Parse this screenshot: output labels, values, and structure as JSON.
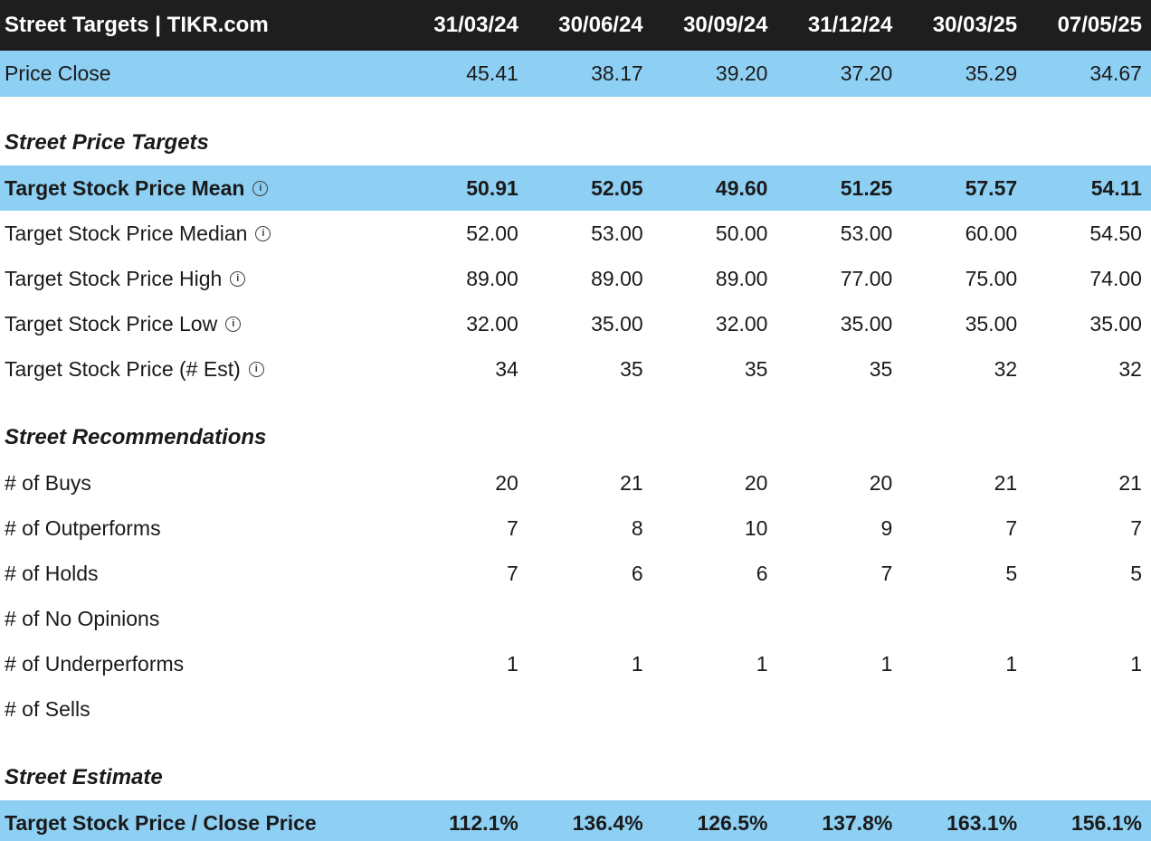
{
  "colors": {
    "header_bg": "#1e1e1e",
    "highlight_blue": "#8ed0f4",
    "text": "#1a1a1a"
  },
  "header": {
    "title": "Street Targets | TIKR.com",
    "dates": [
      "31/03/24",
      "30/06/24",
      "30/09/24",
      "31/12/24",
      "30/03/25",
      "07/05/25"
    ]
  },
  "rows": [
    {
      "type": "data",
      "label": "Price Close",
      "info": false,
      "highlight": true,
      "bold": false,
      "first": true,
      "values": [
        "45.41",
        "38.17",
        "39.20",
        "37.20",
        "35.29",
        "34.67"
      ]
    },
    {
      "type": "spacer"
    },
    {
      "type": "section",
      "label": "Street Price Targets"
    },
    {
      "type": "data",
      "label": "Target Stock Price Mean",
      "info": true,
      "highlight": true,
      "bold": true,
      "values": [
        "50.91",
        "52.05",
        "49.60",
        "51.25",
        "57.57",
        "54.11"
      ]
    },
    {
      "type": "data",
      "label": "Target Stock Price Median",
      "info": true,
      "highlight": false,
      "bold": false,
      "values": [
        "52.00",
        "53.00",
        "50.00",
        "53.00",
        "60.00",
        "54.50"
      ]
    },
    {
      "type": "data",
      "label": "Target Stock Price High",
      "info": true,
      "highlight": false,
      "bold": false,
      "values": [
        "89.00",
        "89.00",
        "89.00",
        "77.00",
        "75.00",
        "74.00"
      ]
    },
    {
      "type": "data",
      "label": "Target Stock Price Low",
      "info": true,
      "highlight": false,
      "bold": false,
      "values": [
        "32.00",
        "35.00",
        "32.00",
        "35.00",
        "35.00",
        "35.00"
      ]
    },
    {
      "type": "data",
      "label": "Target Stock Price (# Est)",
      "info": true,
      "highlight": false,
      "bold": false,
      "values": [
        "34",
        "35",
        "35",
        "35",
        "32",
        "32"
      ]
    },
    {
      "type": "spacer"
    },
    {
      "type": "section",
      "label": "Street Recommendations"
    },
    {
      "type": "data",
      "label": "# of Buys",
      "info": false,
      "highlight": false,
      "bold": false,
      "values": [
        "20",
        "21",
        "20",
        "20",
        "21",
        "21"
      ]
    },
    {
      "type": "data",
      "label": "# of Outperforms",
      "info": false,
      "highlight": false,
      "bold": false,
      "values": [
        "7",
        "8",
        "10",
        "9",
        "7",
        "7"
      ]
    },
    {
      "type": "data",
      "label": "# of Holds",
      "info": false,
      "highlight": false,
      "bold": false,
      "values": [
        "7",
        "6",
        "6",
        "7",
        "5",
        "5"
      ]
    },
    {
      "type": "data",
      "label": "# of No Opinions",
      "info": false,
      "highlight": false,
      "bold": false,
      "values": [
        "",
        "",
        "",
        "",
        "",
        ""
      ]
    },
    {
      "type": "data",
      "label": "# of Underperforms",
      "info": false,
      "highlight": false,
      "bold": false,
      "values": [
        "1",
        "1",
        "1",
        "1",
        "1",
        "1"
      ]
    },
    {
      "type": "data",
      "label": "# of Sells",
      "info": false,
      "highlight": false,
      "bold": false,
      "values": [
        "",
        "",
        "",
        "",
        "",
        ""
      ]
    },
    {
      "type": "spacer"
    },
    {
      "type": "section",
      "label": "Street Estimate"
    },
    {
      "type": "data",
      "label": "Target Stock Price / Close Price",
      "info": false,
      "highlight": true,
      "bold": true,
      "values": [
        "112.1%",
        "136.4%",
        "126.5%",
        "137.8%",
        "163.1%",
        "156.1%"
      ]
    }
  ],
  "icons": {
    "info_icon_glyph": "i"
  }
}
